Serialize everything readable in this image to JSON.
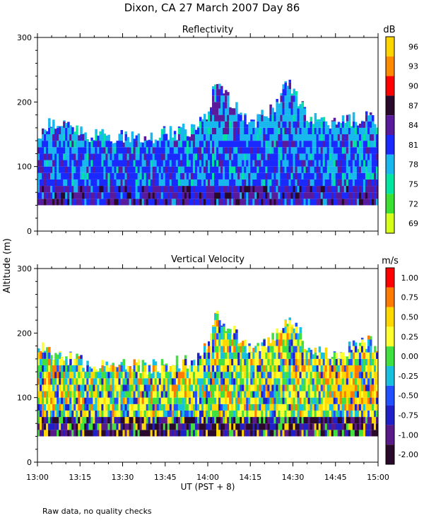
{
  "page": {
    "title": "Dixon, CA 27 March 2007  Day  86",
    "ylabel": "Altitude (m)",
    "xlabel": "UT  (PST + 8)",
    "footnote": "Raw data, no quality checks"
  },
  "chart_data": [
    {
      "type": "heatmap",
      "title": "Reflectivity",
      "colorbar_unit": "dB",
      "ylim": [
        0,
        300
      ],
      "yticks": [
        "0",
        "100",
        "200",
        "300"
      ],
      "x_range_minutes": [
        0,
        120
      ],
      "colorbar_ticks": [
        "96",
        "93",
        "90",
        "87",
        "84",
        "81",
        "78",
        "75",
        "72",
        "69"
      ],
      "colorbar_colors": [
        "#ffd500",
        "#ff8a00",
        "#ff0000",
        "#2a0a2a",
        "#5a1a9c",
        "#1a2aff",
        "#18b8ee",
        "#00e6a0",
        "#3ce030",
        "#d6ff1a"
      ],
      "data_floor_m": 40,
      "envelope_top_m": [
        {
          "t": 0,
          "h": 160
        },
        {
          "t": 5,
          "h": 180
        },
        {
          "t": 20,
          "h": 160
        },
        {
          "t": 40,
          "h": 160
        },
        {
          "t": 55,
          "h": 170
        },
        {
          "t": 60,
          "h": 200
        },
        {
          "t": 62,
          "h": 240
        },
        {
          "t": 70,
          "h": 200
        },
        {
          "t": 75,
          "h": 180
        },
        {
          "t": 82,
          "h": 200
        },
        {
          "t": 88,
          "h": 240
        },
        {
          "t": 95,
          "h": 190
        },
        {
          "t": 105,
          "h": 180
        },
        {
          "t": 115,
          "h": 190
        },
        {
          "t": 120,
          "h": 180
        }
      ]
    },
    {
      "type": "heatmap",
      "title": "Vertical Velocity",
      "colorbar_unit": "m/s",
      "ylim": [
        0,
        300
      ],
      "yticks": [
        "0",
        "100",
        "200",
        "300"
      ],
      "x_range_minutes": [
        0,
        120
      ],
      "colorbar_ticks": [
        "1.00",
        "0.75",
        "0.50",
        "0.25",
        "0.00",
        "-0.25",
        "-0.50",
        "-0.75",
        "-1.00",
        "-2.00"
      ],
      "colorbar_colors": [
        "#ff0000",
        "#ff7a00",
        "#ffd800",
        "#ffff30",
        "#40e040",
        "#18c0e0",
        "#2050ff",
        "#2020c8",
        "#5a1a8a",
        "#2a0a2a"
      ],
      "data_floor_m": 40,
      "envelope_top_m": [
        {
          "t": 0,
          "h": 200
        },
        {
          "t": 5,
          "h": 180
        },
        {
          "t": 20,
          "h": 160
        },
        {
          "t": 40,
          "h": 160
        },
        {
          "t": 55,
          "h": 170
        },
        {
          "t": 60,
          "h": 200
        },
        {
          "t": 62,
          "h": 240
        },
        {
          "t": 70,
          "h": 210
        },
        {
          "t": 75,
          "h": 180
        },
        {
          "t": 82,
          "h": 200
        },
        {
          "t": 88,
          "h": 240
        },
        {
          "t": 95,
          "h": 190
        },
        {
          "t": 105,
          "h": 180
        },
        {
          "t": 115,
          "h": 200
        },
        {
          "t": 120,
          "h": 190
        }
      ]
    }
  ],
  "x_axis": {
    "tick_labels": [
      "13:00",
      "13:15",
      "13:30",
      "13:45",
      "14:00",
      "14:15",
      "14:30",
      "14:45",
      "15:00"
    ],
    "tick_minutes": [
      0,
      15,
      30,
      45,
      60,
      75,
      90,
      105,
      120
    ]
  }
}
